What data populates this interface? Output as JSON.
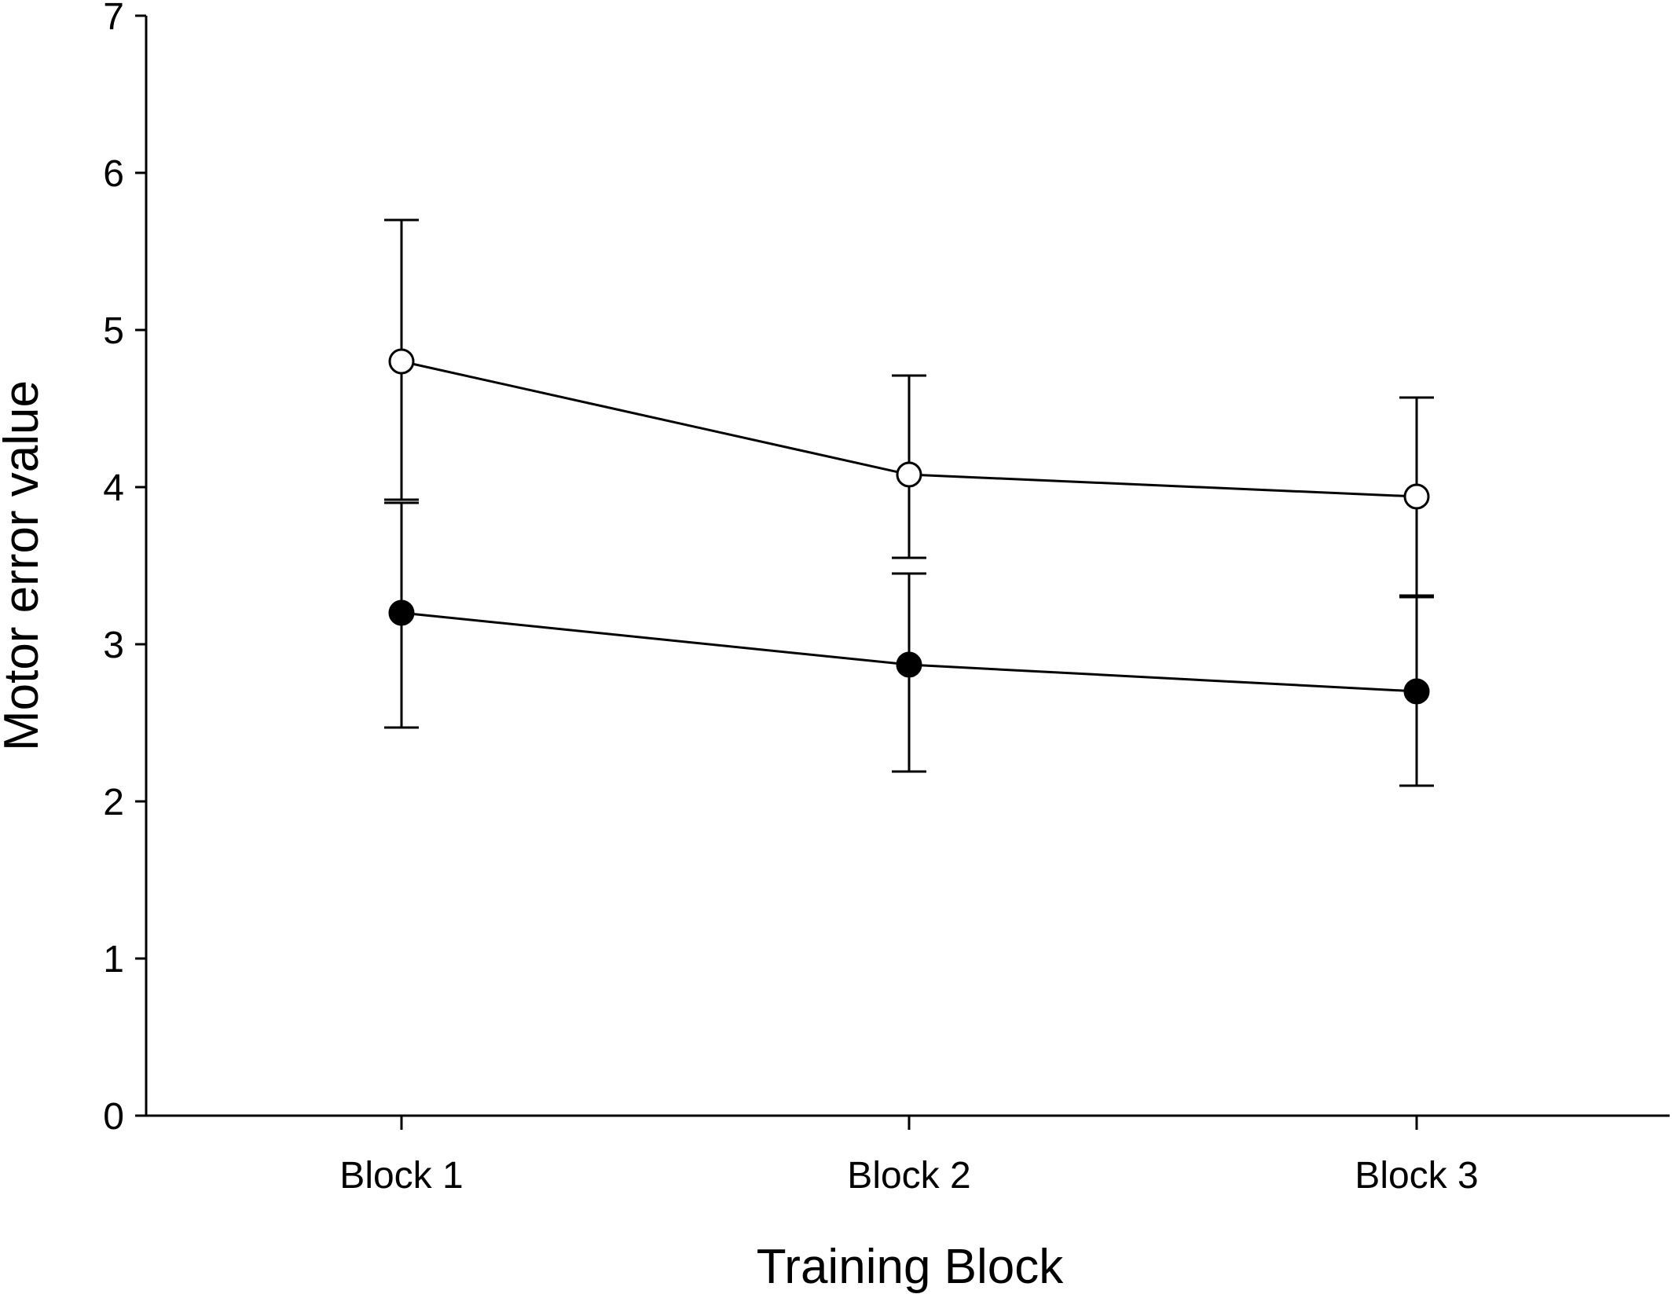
{
  "chart_data": {
    "type": "line",
    "title": "",
    "xlabel": "Training Block",
    "ylabel": "Motor error value",
    "categories": [
      "Block 1",
      "Block 2",
      "Block 3"
    ],
    "ylim": [
      0,
      7
    ],
    "yticks": [
      "0",
      "1",
      "2",
      "3",
      "4",
      "5",
      "6",
      "7"
    ],
    "grid": false,
    "series": [
      {
        "marker": "open-circle",
        "color": "#ffffff",
        "values": [
          4.8,
          4.08,
          3.94
        ],
        "error_upper": [
          5.7,
          4.71,
          4.57
        ],
        "error_lower": [
          3.92,
          3.55,
          3.31
        ]
      },
      {
        "marker": "filled-circle",
        "color": "#000000",
        "values": [
          3.2,
          2.87,
          2.7
        ],
        "error_upper": [
          3.9,
          3.45,
          3.3
        ],
        "error_lower": [
          2.47,
          2.19,
          2.1
        ]
      }
    ]
  }
}
